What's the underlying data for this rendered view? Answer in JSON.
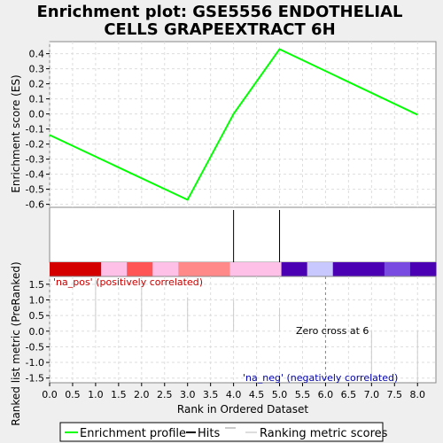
{
  "chart_data": {
    "type": "line",
    "title_lines": [
      "Enrichment plot: GSE5556 ENDOTHELIAL",
      "CELLS GRAPEEXTRACT 6H"
    ],
    "xlabel": "Rank in Ordered Dataset",
    "x_ticks": [
      "0.0",
      "0.5",
      "1.0",
      "1.5",
      "2.0",
      "2.5",
      "3.0",
      "3.5",
      "4.0",
      "4.5",
      "5.0",
      "5.5",
      "6.0",
      "6.5",
      "7.0",
      "7.5",
      "8.0"
    ],
    "xlim": [
      0,
      8.4
    ],
    "enrichment": {
      "ylabel": "Enrichment score (ES)",
      "ylim": [
        -0.62,
        0.48
      ],
      "y_ticks": [
        "0.4",
        "0.3",
        "0.2",
        "0.1",
        "0.0",
        "-0.1",
        "-0.2",
        "-0.3",
        "-0.4",
        "-0.5",
        "-0.6"
      ],
      "series": [
        {
          "name": "Enrichment profile",
          "color": "#00ff00",
          "x": [
            0,
            3,
            4,
            5,
            8
          ],
          "y": [
            -0.14,
            -0.57,
            0.0,
            0.43,
            -0.005
          ]
        }
      ]
    },
    "hits": {
      "x": [
        4,
        5
      ]
    },
    "heatmap_colors": [
      "#d40000",
      "#d40000",
      "#ffc0e8",
      "#ff5555",
      "#ffc0e8",
      "#ff8888",
      "#ff8888",
      "#ffc0e8",
      "#ffc0e8",
      "#4b00b4",
      "#c8c8ff",
      "#4b00b4",
      "#4b00b4",
      "#7a4be0",
      "#4b00b4"
    ],
    "ranking": {
      "ylabel": "Ranked list metric (PreRanked)",
      "ylim": [
        -1.65,
        1.75
      ],
      "y_ticks": [
        "1.5",
        "1.0",
        "0.5",
        "0.0",
        "-0.5",
        "-1.0",
        "-1.5"
      ],
      "bars": {
        "x": [
          1,
          2,
          3,
          4,
          5,
          7,
          8
        ],
        "y": [
          1.65,
          1.45,
          1.08,
          1.0,
          0.75,
          0.0,
          0.0
        ]
      },
      "zero_cross": 6,
      "zero_cross_label": "Zero cross at 6",
      "pos_label": "'na_pos' (positively correlated)",
      "neg_label": "'na_neg' (negatively correlated)"
    },
    "legend": {
      "items": [
        "Enrichment profile",
        "Hits",
        "Ranking metric scores"
      ]
    }
  }
}
